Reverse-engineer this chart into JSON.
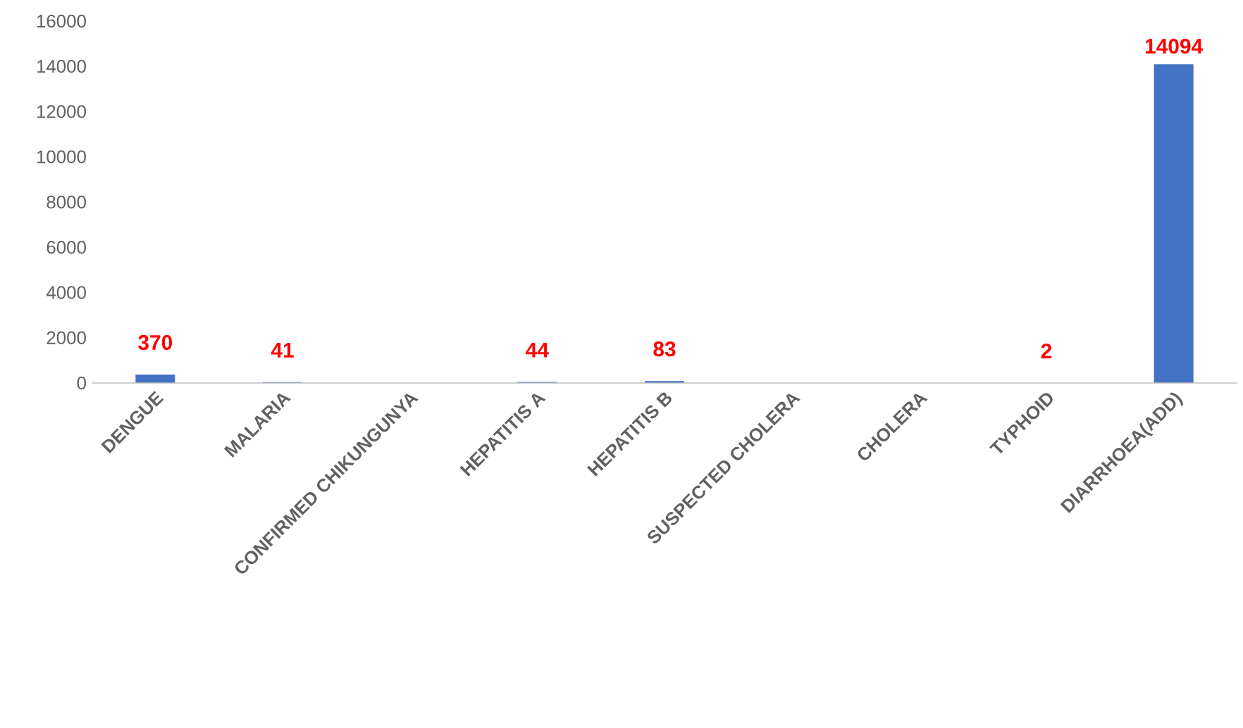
{
  "chart_data": {
    "type": "bar",
    "categories": [
      "DENGUE",
      "MALARIA",
      "CONFIRMED CHIKUNGUNYA",
      "HEPATITIS A",
      "HEPATITIS B",
      "SUSPECTED CHOLERA",
      "CHOLERA",
      "TYPHOID",
      "DIARRHOEA(ADD)"
    ],
    "values": [
      370,
      41,
      null,
      44,
      83,
      null,
      null,
      2,
      14094
    ],
    "value_labels": [
      "370",
      "41",
      null,
      "44",
      "83",
      null,
      null,
      "2",
      "14094"
    ],
    "color": "#4472c4",
    "ylim": [
      0,
      16000
    ],
    "yticks": [
      0,
      2000,
      4000,
      6000,
      8000,
      10000,
      12000,
      14000,
      16000
    ],
    "grid": false
  }
}
